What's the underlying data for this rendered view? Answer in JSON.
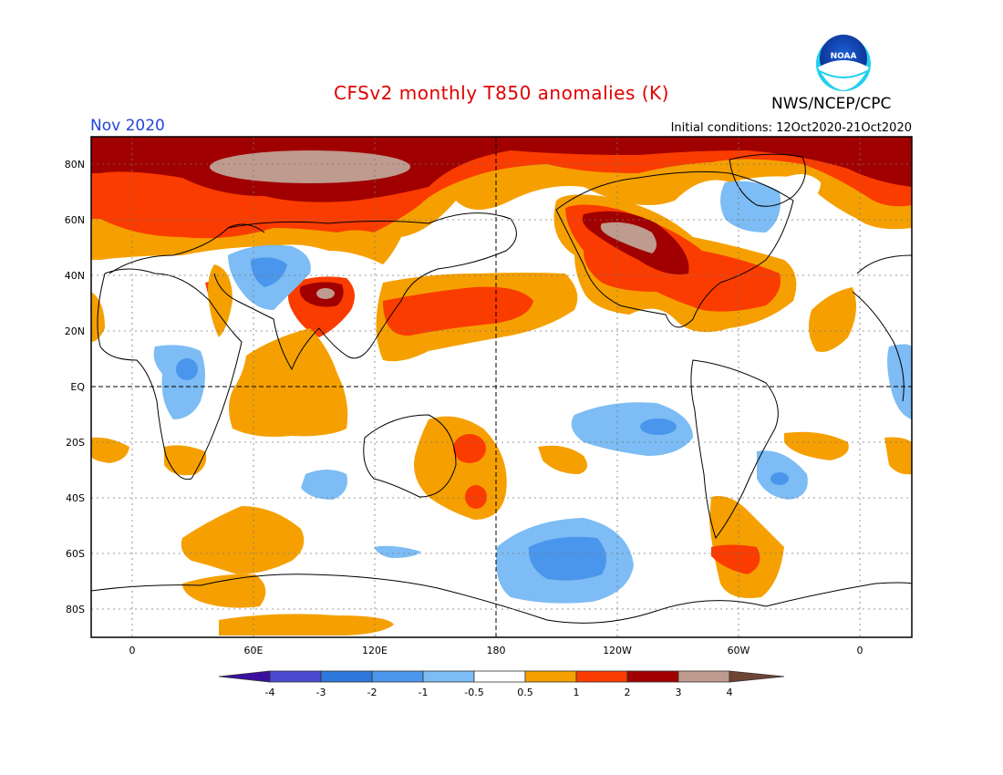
{
  "header": {
    "title": "CFSv2 monthly T850 anomalies (K)",
    "org": "NWS/NCEP/CPC",
    "period": "Nov 2020",
    "initial_conditions": "Initial conditions: 12Oct2020-21Oct2020",
    "logo_text": "NOAA"
  },
  "map": {
    "lon_labels": [
      "0",
      "60E",
      "120E",
      "180",
      "120W",
      "60W",
      "0"
    ],
    "lat_labels": [
      "80N",
      "60N",
      "40N",
      "20N",
      "EQ",
      "20S",
      "40S",
      "60S",
      "80S"
    ],
    "colors": {
      "cold4": "#3a10a0",
      "cold3": "#4a4ad0",
      "cold2": "#2e78dc",
      "cold1": "#4a96ec",
      "cold05": "#7dbcf4",
      "neutral": "#ffffff",
      "warm05": "#f5a000",
      "warm1": "#fa3c00",
      "warm2": "#a00000",
      "warm3": "#bf9a8e",
      "warm4": "#6e4434"
    }
  },
  "colorbar": {
    "labels": [
      "-4",
      "-3",
      "-2",
      "-1",
      "-0.5",
      "0.5",
      "1",
      "2",
      "3",
      "4"
    ]
  }
}
